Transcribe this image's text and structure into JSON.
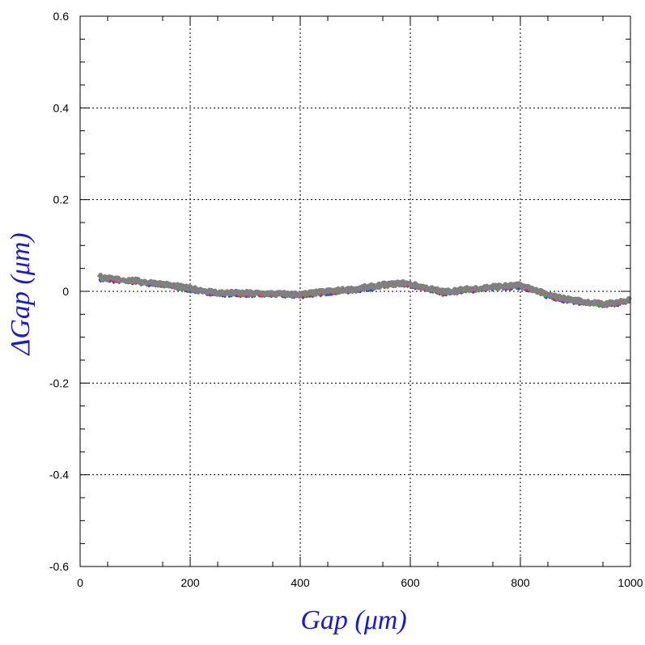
{
  "chart_data": {
    "type": "line",
    "xlabel": "Gap  (μm)",
    "ylabel": "ΔGap  (μm)",
    "xlim": [
      0,
      1000
    ],
    "ylim": [
      -0.6,
      0.6
    ],
    "x_ticks": [
      "0",
      "200",
      "400",
      "600",
      "800",
      "1000"
    ],
    "y_ticks": [
      "-0.6",
      "-0.4",
      "-0.2",
      "0",
      "0.2",
      "0.4",
      "0.6"
    ],
    "grid": true,
    "grid_style": "dotted",
    "label_color": "#1a1ad6",
    "series_colors": [
      "#3a3aff",
      "#e0302a",
      "#2fb52f",
      "#808080"
    ],
    "series": [
      {
        "x": [
          35,
          60,
          100,
          150,
          200,
          250,
          300,
          350,
          400,
          450,
          500,
          550,
          590,
          620,
          660,
          700,
          750,
          800,
          820,
          850,
          880,
          920,
          950,
          980,
          1000
        ],
        "y": [
          0.027,
          0.025,
          0.021,
          0.014,
          0.004,
          -0.005,
          -0.006,
          -0.007,
          -0.009,
          -0.002,
          0.003,
          0.012,
          0.016,
          0.008,
          -0.003,
          0.002,
          0.008,
          0.011,
          0.004,
          -0.01,
          -0.018,
          -0.025,
          -0.03,
          -0.025,
          -0.02
        ]
      }
    ]
  }
}
